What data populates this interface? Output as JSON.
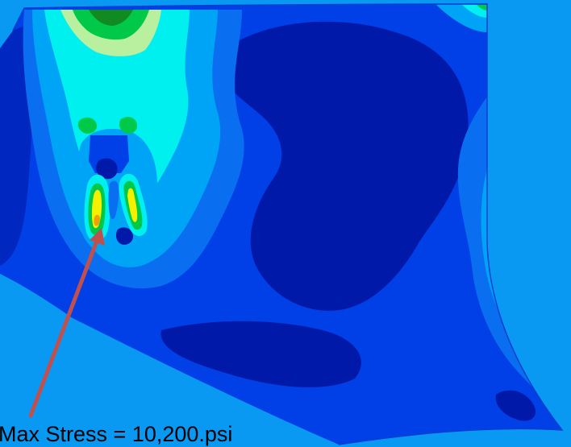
{
  "annotation": {
    "label": "Max Stress = 10,200.psi"
  },
  "colors": {
    "background": "#0a99f2",
    "contour_dark_blue": "#0019a8",
    "contour_blue": "#0040e6",
    "contour_mid_blue": "#0a6ef0",
    "contour_light_blue": "#00a4f6",
    "contour_cyan": "#00f0f0",
    "contour_light_green": "#b8f0a0",
    "contour_green": "#00c848",
    "contour_dark_green": "#128a22",
    "contour_yellow": "#f5f000",
    "contour_orange": "#f0a000",
    "leader_arrow": "#c0504d"
  }
}
